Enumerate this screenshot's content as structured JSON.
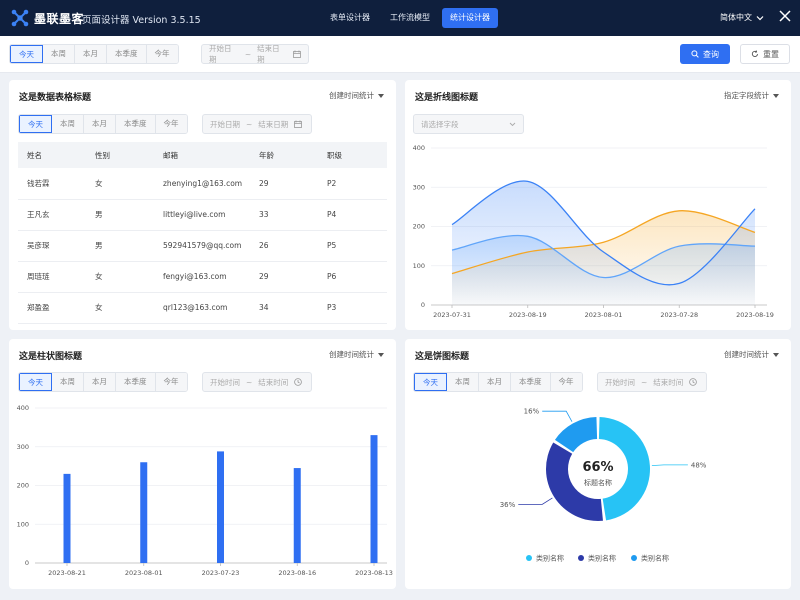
{
  "header": {
    "brand": "墨联墨客",
    "subtitle": "页面设计器 Version 3.5.15",
    "tabs": [
      "表单设计器",
      "工作流模型",
      "统计设计器"
    ],
    "active_tab": "统计设计器",
    "language": "简体中文"
  },
  "filter": {
    "periods": [
      "今天",
      "本周",
      "本月",
      "本季度",
      "今年"
    ],
    "start_placeholder": "开始日期",
    "separator": "~",
    "end_placeholder": "结束日期",
    "query_label": "查询",
    "reset_label": "重置"
  },
  "table_panel": {
    "title": "这是数据表格标题",
    "meta": "创建时间统计",
    "periods": [
      "今天",
      "本周",
      "本月",
      "本季度",
      "今年"
    ],
    "start_placeholder": "开始日期",
    "end_placeholder": "结束日期",
    "columns": [
      "姓名",
      "性别",
      "邮箱",
      "年龄",
      "职级"
    ],
    "rows": [
      [
        "钱若霖",
        "女",
        "zhenying1@163.com",
        "29",
        "P2"
      ],
      [
        "王凡玄",
        "男",
        "littleyi@live.com",
        "33",
        "P4"
      ],
      [
        "吴彦琛",
        "男",
        "592941579@qq.com",
        "26",
        "P5"
      ],
      [
        "周琏琏",
        "女",
        "fengyi@163.com",
        "29",
        "P6"
      ],
      [
        "郑盈盈",
        "女",
        "qrl123@163.com",
        "34",
        "P3"
      ]
    ]
  },
  "line_panel": {
    "title": "这是折线图标题",
    "meta": "指定字段统计",
    "select_placeholder": "请选择字段"
  },
  "bar_panel": {
    "title": "这是柱状图标题",
    "meta": "创建时间统计",
    "periods": [
      "今天",
      "本周",
      "本月",
      "本季度",
      "今年"
    ],
    "start_placeholder": "开始时间",
    "end_placeholder": "结束时间"
  },
  "pie_panel": {
    "title": "这是饼图标题",
    "meta": "创建时间统计",
    "periods": [
      "今天",
      "本周",
      "本月",
      "本季度",
      "今年"
    ],
    "start_placeholder": "开始时间",
    "end_placeholder": "结束时间"
  },
  "colors": {
    "topbar": "#0f1f3d",
    "primary": "#2f6ff2",
    "line_blue": "#3b82f6",
    "line_light_blue": "#60a5fa",
    "line_orange": "#f5a623",
    "pie_light": "#27c3f5",
    "pie_dark": "#2d3aa8",
    "pie_mid": "#1f9bf0"
  },
  "chart_data": [
    {
      "type": "line",
      "categories": [
        "2023-07-31",
        "2023-08-19",
        "2023-08-01",
        "2023-07-28",
        "2023-08-19"
      ],
      "ylim": [
        0,
        400
      ],
      "yticks": [
        0,
        100,
        200,
        300,
        400
      ],
      "series": [
        {
          "values": [
            205,
            315,
            135,
            55,
            245
          ]
        },
        {
          "values": [
            140,
            175,
            70,
            150,
            150
          ]
        },
        {
          "values": [
            80,
            135,
            160,
            240,
            185
          ]
        }
      ]
    },
    {
      "type": "bar",
      "categories": [
        "2023-08-21",
        "2023-08-01",
        "2023-07-23",
        "2023-08-16",
        "2023-08-13"
      ],
      "values": [
        230,
        260,
        288,
        245,
        330
      ],
      "ylim": [
        0,
        400
      ],
      "yticks": [
        0,
        100,
        200,
        300,
        400
      ]
    },
    {
      "type": "pie",
      "center_value": "66%",
      "center_label": "标题名称",
      "slices": [
        {
          "name": "类别名称",
          "value": 48,
          "label": "48%"
        },
        {
          "name": "类别名称",
          "value": 36,
          "label": "36%"
        },
        {
          "name": "类别名称",
          "value": 16,
          "label": "16%"
        }
      ],
      "legend": [
        "类别名称",
        "类别名称",
        "类别名称"
      ]
    }
  ]
}
